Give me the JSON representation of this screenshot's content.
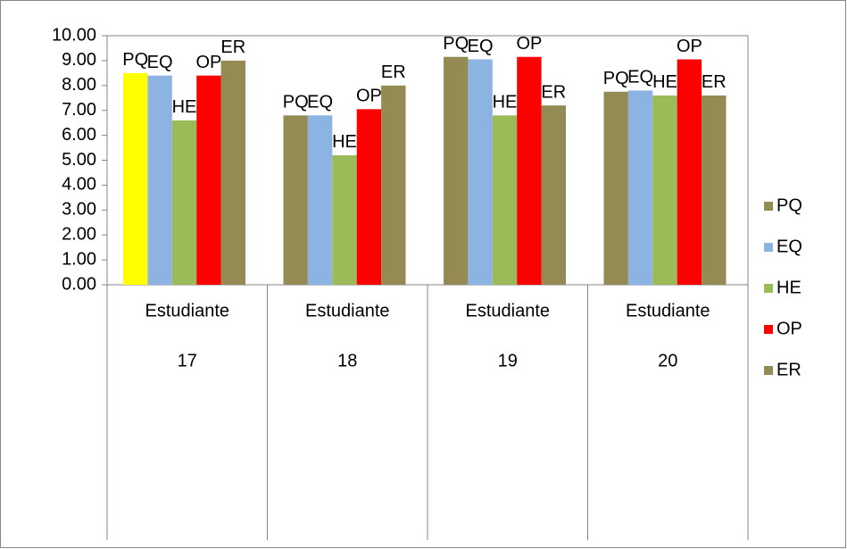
{
  "chart_data": {
    "type": "bar",
    "categories": [
      [
        "Estudiante",
        "17"
      ],
      [
        "Estudiante",
        "18"
      ],
      [
        "Estudiante",
        "19"
      ],
      [
        "Estudiante",
        "20"
      ]
    ],
    "series": [
      {
        "name": "PQ",
        "color": "#948a54",
        "colors": [
          "#ffff00",
          "#948a54",
          "#948a54",
          "#948a54"
        ],
        "values": [
          8.5,
          6.8,
          9.15,
          7.75
        ]
      },
      {
        "name": "EQ",
        "color": "#8db3e2",
        "values": [
          8.4,
          6.8,
          9.05,
          7.8
        ]
      },
      {
        "name": "HE",
        "color": "#9bbb59",
        "values": [
          6.6,
          5.2,
          6.8,
          7.6
        ]
      },
      {
        "name": "OP",
        "color": "#ff0000",
        "values": [
          8.4,
          7.05,
          9.15,
          9.05
        ]
      },
      {
        "name": "ER",
        "color": "#948a54",
        "values": [
          9.0,
          8.0,
          7.2,
          7.6
        ]
      }
    ],
    "ylim": [
      0,
      10
    ],
    "yticks": [
      {
        "value": 0,
        "label": "0.00"
      },
      {
        "value": 1,
        "label": "1.00"
      },
      {
        "value": 2,
        "label": "2.00"
      },
      {
        "value": 3,
        "label": "3.00"
      },
      {
        "value": 4,
        "label": "4.00"
      },
      {
        "value": 5,
        "label": "5.00"
      },
      {
        "value": 6,
        "label": "6.00"
      },
      {
        "value": 7,
        "label": "7.00"
      },
      {
        "value": 8,
        "label": "8.00"
      },
      {
        "value": 9,
        "label": "9.00"
      },
      {
        "value": 10,
        "label": "10.00"
      }
    ],
    "data_labels": "series_name",
    "legend": "right"
  }
}
